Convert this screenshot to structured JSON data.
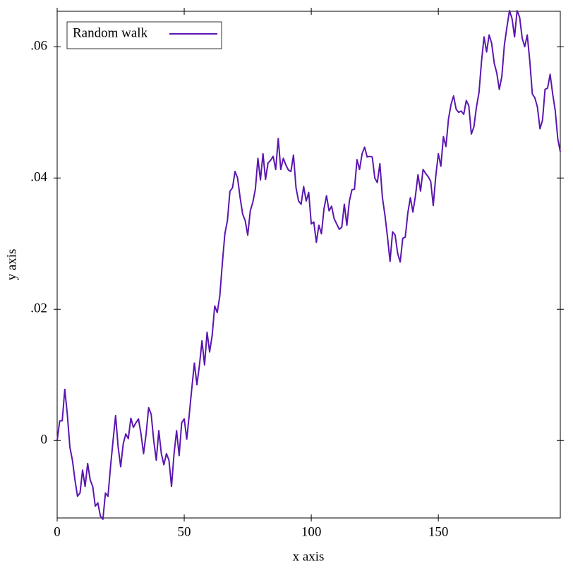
{
  "chart_data": {
    "type": "line",
    "xlabel": "x axis",
    "ylabel": "y axis",
    "xlim": [
      0,
      198
    ],
    "ylim": [
      -0.0118,
      0.0654
    ],
    "xticks": [
      0,
      50,
      100,
      150
    ],
    "yticks": [
      0,
      {
        "value": 0.02,
        "label": ".02"
      },
      {
        "value": 0.04,
        "label": ".04"
      },
      {
        "value": 0.06,
        "label": ".06"
      }
    ],
    "grid": false,
    "legend": "upper-left",
    "x": [
      0,
      1,
      2,
      3,
      4,
      5,
      6,
      7,
      8,
      9,
      10,
      11,
      12,
      13,
      14,
      15,
      16,
      17,
      18,
      19,
      20,
      21,
      22,
      23,
      24,
      25,
      26,
      27,
      28,
      29,
      30,
      31,
      32,
      33,
      34,
      35,
      36,
      37,
      38,
      39,
      40,
      41,
      42,
      43,
      44,
      45,
      46,
      47,
      48,
      49,
      50,
      51,
      52,
      53,
      54,
      55,
      56,
      57,
      58,
      59,
      60,
      61,
      62,
      63,
      64,
      65,
      66,
      67,
      68,
      69,
      70,
      71,
      72,
      73,
      74,
      75,
      76,
      77,
      78,
      79,
      80,
      81,
      82,
      83,
      84,
      85,
      86,
      87,
      88,
      89,
      90,
      91,
      92,
      93,
      94,
      95,
      96,
      97,
      98,
      99,
      100,
      101,
      102,
      103,
      104,
      105,
      106,
      107,
      108,
      109,
      110,
      111,
      112,
      113,
      114,
      115,
      116,
      117,
      118,
      119,
      120,
      121,
      122,
      123,
      124,
      125,
      126,
      127,
      128,
      129,
      130,
      131,
      132,
      133,
      134,
      135,
      136,
      137,
      138,
      139,
      140,
      141,
      142,
      143,
      144,
      145,
      146,
      147,
      148,
      149,
      150,
      151,
      152,
      153,
      154,
      155,
      156,
      157,
      158,
      159,
      160,
      161,
      162,
      163,
      164,
      165,
      166,
      167,
      168,
      169,
      170,
      171,
      172,
      173,
      174,
      175,
      176,
      177,
      178,
      179,
      180,
      181,
      182,
      183,
      184,
      185,
      186,
      187,
      188,
      189,
      190,
      191,
      192,
      193,
      194,
      195,
      196,
      197,
      198
    ],
    "series": [
      {
        "name": "Random walk",
        "color": "#5b16b0",
        "values": [
          0,
          0.003,
          0.003,
          0.0078,
          0.004,
          -0.001,
          -0.003,
          -0.006,
          -0.0085,
          -0.008,
          -0.0045,
          -0.007,
          -0.0035,
          -0.006,
          -0.007,
          -0.01,
          -0.0095,
          -0.0115,
          -0.012,
          -0.008,
          -0.0085,
          -0.004,
          0,
          0.0038,
          -0.001,
          -0.004,
          -0.0005,
          0.001,
          0.0003,
          0.0034,
          0.002,
          0.0027,
          0.0033,
          0.001,
          -0.002,
          0.001,
          0.005,
          0.004,
          0,
          -0.003,
          0.0015,
          -0.002,
          -0.0037,
          -0.002,
          -0.003,
          -0.007,
          -0.002,
          0.0015,
          -0.0023,
          0.0027,
          0.0033,
          0.0002,
          0.004,
          0.008,
          0.0118,
          0.0085,
          0.0115,
          0.0152,
          0.0115,
          0.0165,
          0.0135,
          0.016,
          0.0205,
          0.0195,
          0.022,
          0.027,
          0.0315,
          0.0335,
          0.038,
          0.0385,
          0.041,
          0.04,
          0.037,
          0.0345,
          0.0335,
          0.0313,
          0.035,
          0.0363,
          0.0383,
          0.043,
          0.0397,
          0.0437,
          0.0398,
          0.0423,
          0.0427,
          0.0433,
          0.0413,
          0.046,
          0.0413,
          0.043,
          0.042,
          0.0412,
          0.041,
          0.0435,
          0.0385,
          0.0365,
          0.036,
          0.0387,
          0.0365,
          0.0378,
          0.033,
          0.0333,
          0.0302,
          0.0328,
          0.0315,
          0.0353,
          0.0373,
          0.035,
          0.0357,
          0.0338,
          0.033,
          0.0322,
          0.0325,
          0.036,
          0.0328,
          0.0365,
          0.0382,
          0.0383,
          0.0428,
          0.0413,
          0.0437,
          0.0447,
          0.0432,
          0.0433,
          0.0432,
          0.04,
          0.0393,
          0.0422,
          0.037,
          0.0343,
          0.031,
          0.0273,
          0.0318,
          0.0313,
          0.0285,
          0.0272,
          0.0308,
          0.031,
          0.0347,
          0.037,
          0.0348,
          0.0373,
          0.0405,
          0.038,
          0.0413,
          0.0407,
          0.0402,
          0.0395,
          0.0358,
          0.0403,
          0.0437,
          0.0418,
          0.0463,
          0.0448,
          0.049,
          0.0512,
          0.0525,
          0.0505,
          0.05,
          0.0502,
          0.0497,
          0.0518,
          0.051,
          0.0467,
          0.0478,
          0.0508,
          0.053,
          0.0578,
          0.0615,
          0.0592,
          0.0618,
          0.0605,
          0.0575,
          0.056,
          0.0535,
          0.0555,
          0.0603,
          0.063,
          0.0655,
          0.0643,
          0.0615,
          0.0655,
          0.0645,
          0.0613,
          0.06,
          0.0618,
          0.0578,
          0.0528,
          0.0522,
          0.0508,
          0.0475,
          0.0488,
          0.0535,
          0.0537,
          0.0558,
          0.0528,
          0.0503,
          0.046,
          0.044
        ]
      }
    ]
  }
}
